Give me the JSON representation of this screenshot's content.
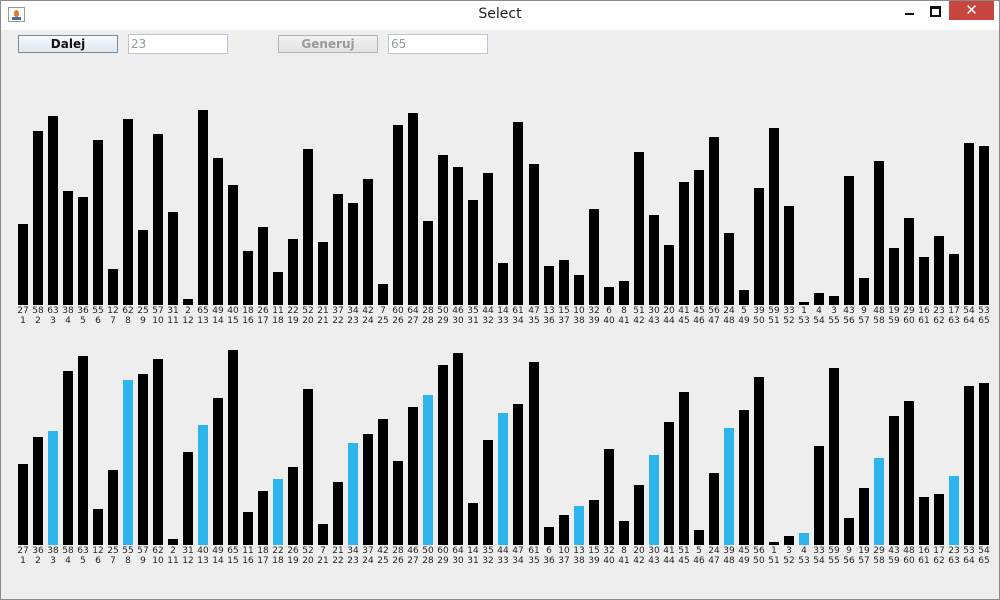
{
  "window": {
    "title": "Select",
    "close_glyph": "✕"
  },
  "toolbar": {
    "next_label": "Dalej",
    "next_value": "23",
    "generate_label": "Generuj",
    "generate_value": "65"
  },
  "colors": {
    "bar": "#000000",
    "highlight": "#2fb5ee"
  },
  "chart_data": [
    {
      "type": "bar",
      "name": "top",
      "categories": [
        1,
        2,
        3,
        4,
        5,
        6,
        7,
        8,
        9,
        10,
        11,
        12,
        13,
        14,
        15,
        16,
        17,
        18,
        19,
        20,
        21,
        22,
        23,
        24,
        25,
        26,
        27,
        28,
        29,
        30,
        31,
        32,
        33,
        34,
        35,
        36,
        37,
        38,
        39,
        40,
        41,
        42,
        43,
        44,
        45,
        46,
        47,
        48,
        49,
        50,
        51,
        52,
        53,
        54,
        55,
        56,
        57,
        58,
        59,
        60,
        61,
        62,
        63,
        64,
        65
      ],
      "values": [
        27,
        58,
        63,
        38,
        36,
        55,
        12,
        62,
        25,
        57,
        31,
        2,
        65,
        49,
        40,
        18,
        26,
        11,
        22,
        52,
        21,
        37,
        34,
        42,
        7,
        60,
        64,
        28,
        50,
        46,
        35,
        44,
        14,
        61,
        47,
        13,
        15,
        10,
        32,
        6,
        8,
        51,
        30,
        20,
        41,
        45,
        56,
        24,
        5,
        39,
        59,
        33,
        1,
        4,
        3,
        43,
        9,
        48,
        19,
        29,
        16,
        23,
        17,
        54,
        53
      ],
      "highlighted_values": []
    },
    {
      "type": "bar",
      "name": "bottom",
      "categories": [
        1,
        2,
        3,
        4,
        5,
        6,
        7,
        8,
        9,
        10,
        11,
        12,
        13,
        14,
        15,
        16,
        17,
        18,
        19,
        20,
        21,
        22,
        23,
        24,
        25,
        26,
        27,
        28,
        29,
        30,
        31,
        32,
        33,
        34,
        35,
        36,
        37,
        38,
        39,
        40,
        41,
        42,
        43,
        44,
        45,
        46,
        47,
        48,
        49,
        50,
        51,
        52,
        53,
        54,
        55,
        56,
        57,
        58,
        59,
        60,
        61,
        62,
        63,
        64,
        65
      ],
      "values": [
        27,
        36,
        38,
        58,
        63,
        12,
        25,
        55,
        57,
        62,
        2,
        31,
        40,
        49,
        65,
        11,
        18,
        22,
        26,
        52,
        7,
        21,
        34,
        37,
        42,
        28,
        46,
        50,
        60,
        64,
        14,
        35,
        44,
        47,
        61,
        6,
        10,
        13,
        15,
        32,
        8,
        20,
        30,
        41,
        51,
        5,
        24,
        39,
        45,
        56,
        1,
        3,
        4,
        33,
        59,
        9,
        19,
        29,
        43,
        48,
        16,
        17,
        23,
        53,
        54
      ],
      "highlighted_values": [
        38,
        55,
        40,
        22,
        34,
        50,
        44,
        13,
        30,
        39,
        4,
        29,
        23
      ]
    }
  ]
}
